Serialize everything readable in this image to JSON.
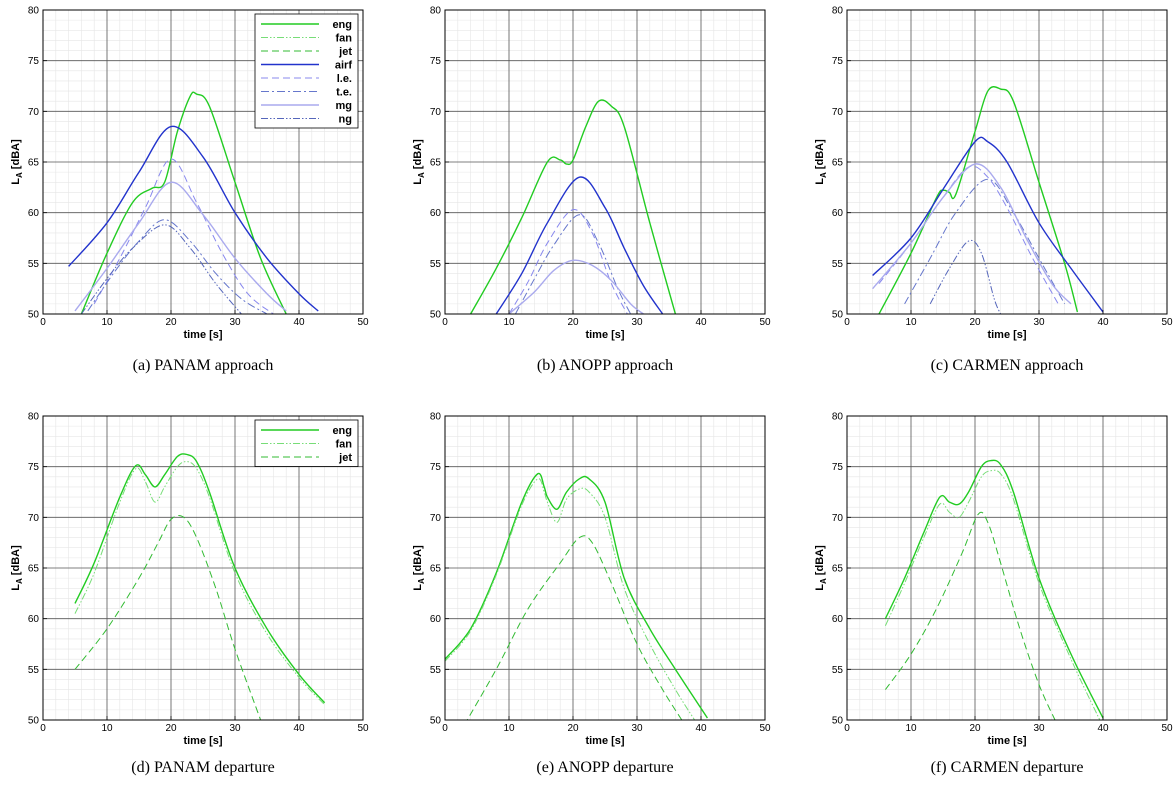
{
  "ylabel_main": "L",
  "ylabel_sub": "A",
  "ylabel_unit": "[dBA]",
  "panels": [
    {
      "caption": "(a)  PANAM approach"
    },
    {
      "caption": "(b)  ANOPP approach"
    },
    {
      "caption": "(c)  CARMEN approach"
    },
    {
      "caption": "(d)  PANAM departure"
    },
    {
      "caption": "(e)  ANOPP departure"
    },
    {
      "caption": "(f)  CARMEN departure"
    }
  ],
  "chart_data": [
    {
      "type": "line",
      "xlabel": "time [s]",
      "ylabel": "L_A [dBA]",
      "xlim": [
        0,
        50
      ],
      "ylim": [
        50,
        80
      ],
      "xticks": [
        0,
        10,
        20,
        30,
        40,
        50
      ],
      "yticks": [
        50,
        55,
        60,
        65,
        70,
        75,
        80
      ],
      "grid": true,
      "legend": "top-right",
      "series": [
        {
          "name": "eng",
          "color": "#22cc22",
          "style": "solid",
          "x": [
            6,
            10,
            14,
            17,
            19,
            21,
            23,
            24,
            26,
            30,
            34,
            38
          ],
          "y": [
            50,
            56,
            61,
            62.4,
            63,
            68,
            71.5,
            71.7,
            70.5,
            63,
            55.5,
            50
          ]
        },
        {
          "name": "fan",
          "color": "#77dd77",
          "style": "dashdotdot",
          "x": [],
          "y": []
        },
        {
          "name": "jet",
          "color": "#33bb33",
          "style": "dashed",
          "x": [],
          "y": []
        },
        {
          "name": "airf",
          "color": "#2233cc",
          "style": "solid",
          "x": [
            4,
            10,
            15,
            20,
            25,
            30,
            35,
            40,
            43
          ],
          "y": [
            54.7,
            59,
            64,
            68.5,
            65.5,
            60,
            55.5,
            52,
            50.3
          ]
        },
        {
          "name": "l.e.",
          "color": "#8888ee",
          "style": "dashed",
          "x": [
            8,
            12,
            16,
            20,
            24,
            28,
            32,
            36
          ],
          "y": [
            51,
            55.5,
            60.5,
            65.3,
            61,
            56,
            52,
            50
          ]
        },
        {
          "name": "t.e.",
          "color": "#6677cc",
          "style": "dashdot",
          "x": [
            7,
            11,
            15,
            19,
            23,
            27,
            31,
            35
          ],
          "y": [
            50.3,
            54,
            57.2,
            59.3,
            57.2,
            54,
            51.5,
            50
          ]
        },
        {
          "name": "mg",
          "color": "#aaaaee",
          "style": "solid",
          "x": [
            5,
            10,
            15,
            20,
            25,
            30,
            35,
            38
          ],
          "y": [
            50.3,
            54.5,
            59,
            63,
            59.8,
            55.5,
            52,
            50.3
          ]
        },
        {
          "name": "ng",
          "color": "#5566bb",
          "style": "dashdotdot",
          "x": [
            6,
            10,
            14,
            19,
            23,
            27,
            31
          ],
          "y": [
            50,
            53.5,
            56.5,
            58.8,
            56.5,
            53,
            50
          ]
        }
      ]
    },
    {
      "type": "line",
      "xlabel": "time [s]",
      "ylabel": "L_A [dBA]",
      "xlim": [
        0,
        50
      ],
      "ylim": [
        50,
        80
      ],
      "xticks": [
        0,
        10,
        20,
        30,
        40,
        50
      ],
      "yticks": [
        50,
        55,
        60,
        65,
        70,
        75,
        80
      ],
      "grid": true,
      "series": [
        {
          "color": "#22cc22",
          "style": "solid",
          "x": [
            4,
            8,
            12,
            16,
            18,
            19,
            20,
            22,
            24,
            26,
            28,
            32,
            36
          ],
          "y": [
            50,
            54.5,
            59.5,
            65,
            65.2,
            64.8,
            65.2,
            68.5,
            71,
            70.5,
            68.5,
            59,
            50
          ]
        },
        {
          "color": "#2233cc",
          "style": "solid",
          "x": [
            8,
            12,
            16,
            21,
            25,
            28,
            31,
            34
          ],
          "y": [
            50,
            54,
            59,
            63.5,
            60.5,
            56.5,
            52.8,
            50
          ]
        },
        {
          "color": "#8888ee",
          "style": "dashed",
          "x": [
            10,
            13,
            16,
            20,
            23,
            26,
            28.5
          ],
          "y": [
            50,
            53.2,
            57,
            60.3,
            58,
            53,
            50
          ]
        },
        {
          "color": "#6677cc",
          "style": "dashdot",
          "x": [
            11,
            14,
            17,
            21,
            24,
            27,
            29
          ],
          "y": [
            50,
            53.5,
            56.8,
            59.8,
            57,
            52.5,
            50
          ]
        },
        {
          "color": "#aaaaee",
          "style": "solid",
          "x": [
            10,
            14,
            17,
            20,
            23,
            26,
            29,
            31
          ],
          "y": [
            50,
            52.2,
            54.3,
            55.3,
            54.8,
            53.3,
            51,
            50
          ]
        }
      ]
    },
    {
      "type": "line",
      "xlabel": "time [s]",
      "ylabel": "L_A [dBA]",
      "xlim": [
        0,
        50
      ],
      "ylim": [
        50,
        80
      ],
      "xticks": [
        0,
        10,
        20,
        30,
        40,
        50
      ],
      "yticks": [
        50,
        55,
        60,
        65,
        70,
        75,
        80
      ],
      "grid": true,
      "series": [
        {
          "color": "#22cc22",
          "style": "solid",
          "x": [
            5,
            10,
            14,
            15,
            16,
            17,
            20,
            22,
            24,
            26,
            30,
            34,
            36
          ],
          "y": [
            50,
            56,
            61.5,
            62.2,
            62,
            61.8,
            68,
            72,
            72.2,
            71,
            63,
            55,
            50.2
          ]
        },
        {
          "color": "#2233cc",
          "style": "solid",
          "x": [
            4,
            10,
            15,
            20,
            22,
            25,
            30,
            35,
            40
          ],
          "y": [
            53.8,
            57.5,
            62.3,
            67,
            67,
            65,
            59,
            54.5,
            50.2
          ]
        },
        {
          "color": "#8888ee",
          "style": "dashed",
          "x": [
            5,
            10,
            15,
            19,
            22,
            25,
            29,
            33
          ],
          "y": [
            53,
            57,
            61.5,
            64.5,
            63.5,
            60.5,
            55.5,
            51
          ]
        },
        {
          "color": "#6677cc",
          "style": "dashdot",
          "x": [
            9,
            13,
            17,
            22,
            26,
            30,
            34
          ],
          "y": [
            51,
            55.5,
            60,
            63.3,
            60,
            55.5,
            51
          ]
        },
        {
          "color": "#aaaaee",
          "style": "solid",
          "x": [
            4,
            10,
            15,
            20,
            24,
            28,
            32,
            35
          ],
          "y": [
            52.5,
            57,
            61.5,
            64.8,
            62.5,
            57.5,
            53,
            51
          ]
        },
        {
          "color": "#5566bb",
          "style": "dashdotdot",
          "x": [
            13,
            16,
            19,
            21,
            23,
            24
          ],
          "y": [
            51,
            54.5,
            57.2,
            56,
            51.5,
            50
          ]
        }
      ]
    },
    {
      "type": "line",
      "xlabel": "time [s]",
      "ylabel": "L_A [dBA]",
      "xlim": [
        0,
        50
      ],
      "ylim": [
        50,
        80
      ],
      "xticks": [
        0,
        10,
        20,
        30,
        40,
        50
      ],
      "yticks": [
        50,
        55,
        60,
        65,
        70,
        75,
        80
      ],
      "grid": true,
      "legend": "top-right",
      "series": [
        {
          "name": "eng",
          "color": "#22cc22",
          "style": "solid",
          "x": [
            5,
            8,
            12,
            14.5,
            16,
            17.5,
            19,
            21,
            22.5,
            24,
            26,
            30,
            35,
            40,
            44
          ],
          "y": [
            61.5,
            65.5,
            72,
            75.1,
            74.2,
            73,
            74.2,
            76,
            76.2,
            75.5,
            72.5,
            65,
            59,
            54.5,
            51.7
          ]
        },
        {
          "name": "fan",
          "color": "#77dd77",
          "style": "dashdotdot",
          "x": [
            5,
            8,
            12,
            14.5,
            16,
            17.5,
            19,
            21,
            22.5,
            24,
            26,
            30,
            35,
            40,
            44
          ],
          "y": [
            60.5,
            64.5,
            71.5,
            74.8,
            73.5,
            71.5,
            73,
            75,
            75.5,
            74.8,
            72,
            64.5,
            58.5,
            54.2,
            51.5
          ]
        },
        {
          "name": "jet",
          "color": "#33bb33",
          "style": "dashed",
          "x": [
            5,
            10,
            15,
            18,
            20,
            22,
            24,
            27,
            30,
            34
          ],
          "y": [
            55,
            59,
            64,
            67.5,
            69.8,
            70,
            68,
            63,
            57,
            50
          ]
        }
      ]
    },
    {
      "type": "line",
      "xlabel": "time [s]",
      "ylabel": "L_A [dBA]",
      "xlim": [
        0,
        50
      ],
      "ylim": [
        50,
        80
      ],
      "xticks": [
        0,
        10,
        20,
        30,
        40,
        50
      ],
      "yticks": [
        50,
        55,
        60,
        65,
        70,
        75,
        80
      ],
      "grid": true,
      "series": [
        {
          "color": "#22cc22",
          "style": "solid",
          "x": [
            0,
            4,
            8,
            12,
            14.5,
            15.5,
            16,
            17.5,
            19,
            21,
            22.5,
            25,
            28,
            32,
            36,
            41
          ],
          "y": [
            56,
            59,
            64.5,
            71.5,
            74.3,
            73,
            72,
            70.8,
            72.5,
            73.8,
            73.8,
            71.5,
            64,
            59,
            55,
            50.2
          ]
        },
        {
          "color": "#77dd77",
          "style": "dashdotdot",
          "x": [
            0,
            4,
            8,
            12,
            14.5,
            15.5,
            16,
            17.5,
            19,
            21,
            22.5,
            25,
            28,
            32,
            36,
            39
          ],
          "y": [
            55.8,
            58.8,
            64.3,
            71.2,
            73.8,
            72.5,
            71.5,
            69.5,
            71.8,
            72.8,
            72.5,
            70,
            63,
            57.5,
            53,
            50
          ]
        },
        {
          "color": "#33bb33",
          "style": "dashed",
          "x": [
            3,
            8,
            13,
            18,
            21,
            23,
            26,
            30,
            34,
            37
          ],
          "y": [
            49.5,
            55,
            61,
            65.5,
            68,
            67.5,
            63.5,
            57.5,
            53,
            50
          ]
        }
      ]
    },
    {
      "type": "line",
      "xlabel": "time [s]",
      "ylabel": "L_A [dBA]",
      "xlim": [
        0,
        50
      ],
      "ylim": [
        50,
        80
      ],
      "xticks": [
        0,
        10,
        20,
        30,
        40,
        50
      ],
      "yticks": [
        50,
        55,
        60,
        65,
        70,
        75,
        80
      ],
      "grid": true,
      "series": [
        {
          "color": "#22cc22",
          "style": "solid",
          "x": [
            6,
            9,
            12,
            14.5,
            16,
            17.5,
            19,
            21,
            22.5,
            24,
            26,
            30,
            35,
            40
          ],
          "y": [
            60,
            64,
            68.5,
            72,
            71.5,
            71.3,
            72.5,
            75,
            75.6,
            75.2,
            72.5,
            64,
            56.5,
            50.2
          ]
        },
        {
          "color": "#77dd77",
          "style": "dashdotdot",
          "x": [
            6,
            9,
            12,
            14.5,
            16,
            17.5,
            19,
            21,
            22.5,
            24,
            26,
            30,
            35,
            39.5
          ],
          "y": [
            59.3,
            63.5,
            68,
            71.3,
            70.5,
            70,
            71.5,
            74,
            74.6,
            74.3,
            71.8,
            63.5,
            56,
            50
          ]
        },
        {
          "color": "#33bb33",
          "style": "dashed",
          "x": [
            6,
            10,
            14,
            18,
            20.5,
            22,
            24,
            27,
            30,
            32.5
          ],
          "y": [
            53,
            56.5,
            61,
            66.5,
            70.3,
            69.5,
            65.5,
            59,
            53.5,
            50
          ]
        }
      ]
    }
  ]
}
